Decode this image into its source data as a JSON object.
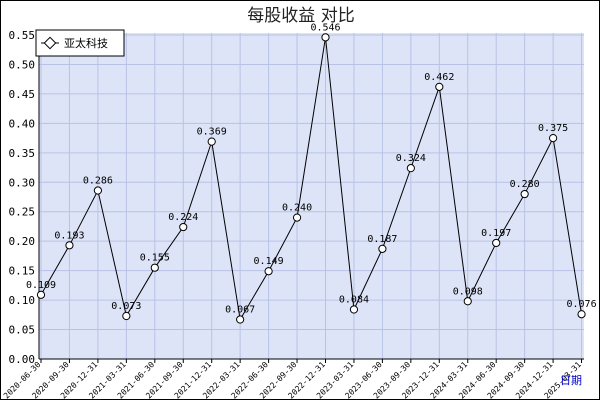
{
  "chart_data": {
    "type": "line",
    "title": "每股收益  对比",
    "xlabel": "日期",
    "ylabel": "",
    "ylim": [
      0,
      0.55
    ],
    "yticks": [
      "0.00",
      "0.05",
      "0.10",
      "0.15",
      "0.20",
      "0.25",
      "0.30",
      "0.35",
      "0.40",
      "0.45",
      "0.50",
      "0.55"
    ],
    "grid": true,
    "legend": "top-left",
    "colors": {
      "plot_bg": "#dde4f7",
      "grid": "#b8c2e6",
      "line": "#000000"
    },
    "categories": [
      "2020-06-30",
      "2020-09-30",
      "2020-12-31",
      "2021-03-31",
      "2021-06-30",
      "2021-09-30",
      "2021-12-31",
      "2022-03-31",
      "2022-06-30",
      "2022-09-30",
      "2022-12-31",
      "2023-03-31",
      "2023-06-30",
      "2023-09-30",
      "2023-12-31",
      "2024-03-31",
      "2024-06-30",
      "2024-09-30",
      "2024-12-31",
      "2025-03-31"
    ],
    "series": [
      {
        "name": "亚太科技",
        "values": [
          0.109,
          0.193,
          0.286,
          0.073,
          0.155,
          0.224,
          0.369,
          0.067,
          0.149,
          0.24,
          0.546,
          0.084,
          0.187,
          0.324,
          0.462,
          0.098,
          0.197,
          0.28,
          0.375,
          0.076
        ],
        "labels": [
          "0.109",
          "0.193",
          "0.286",
          "0.073",
          "0.155",
          "0.224",
          "0.369",
          "0.067",
          "0.149",
          "0.240",
          "0.546",
          "0.084",
          "0.187",
          "0.324",
          "0.462",
          "0.098",
          "0.197",
          "0.280",
          "0.375",
          "0.076"
        ]
      }
    ]
  }
}
